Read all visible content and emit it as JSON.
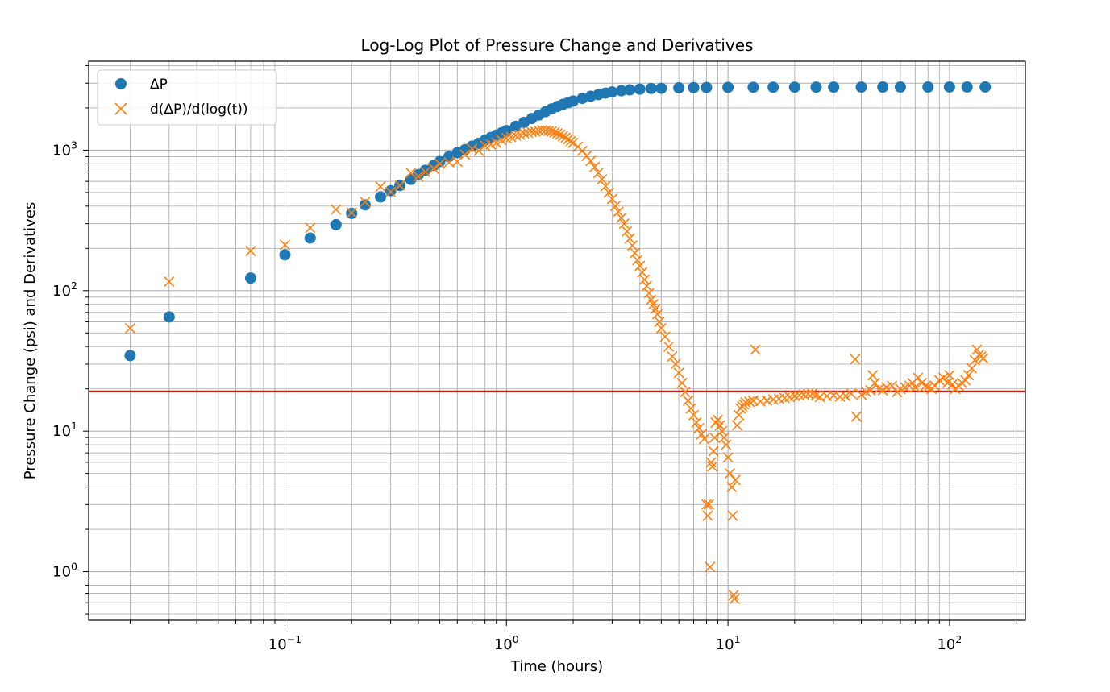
{
  "chart_data": {
    "type": "scatter",
    "title": "Log-Log Plot of Pressure Change and Derivatives",
    "xlabel": "Time (hours)",
    "ylabel": "Pressure Change (psi) and Derivatives",
    "xscale": "log",
    "yscale": "log",
    "xlim": [
      0.013,
      220
    ],
    "ylim": [
      0.45,
      4300
    ],
    "grid": true,
    "grid_minor": true,
    "legend_position": "top-left",
    "x_ticks": [
      {
        "base": "10",
        "exp": "−1",
        "value": 0.1
      },
      {
        "base": "10",
        "exp": "0",
        "value": 1
      },
      {
        "base": "10",
        "exp": "1",
        "value": 10
      },
      {
        "base": "10",
        "exp": "2",
        "value": 100
      }
    ],
    "y_ticks": [
      {
        "base": "10",
        "exp": "0",
        "value": 1
      },
      {
        "base": "10",
        "exp": "1",
        "value": 10
      },
      {
        "base": "10",
        "exp": "2",
        "value": 100
      },
      {
        "base": "10",
        "exp": "3",
        "value": 1000
      }
    ],
    "reference_line": {
      "y": 19.2,
      "color": "#ff0000"
    },
    "series": [
      {
        "name": "ΔP",
        "marker": "circle",
        "color": "#1f77b4",
        "x": [
          0.02,
          0.03,
          0.07,
          0.1,
          0.13,
          0.17,
          0.2,
          0.23,
          0.27,
          0.3,
          0.33,
          0.37,
          0.4,
          0.43,
          0.47,
          0.5,
          0.55,
          0.6,
          0.65,
          0.7,
          0.75,
          0.8,
          0.85,
          0.9,
          0.95,
          1.0,
          1.1,
          1.2,
          1.3,
          1.4,
          1.5,
          1.6,
          1.7,
          1.8,
          1.9,
          2.0,
          2.2,
          2.4,
          2.6,
          2.8,
          3.0,
          3.3,
          3.6,
          4.0,
          4.5,
          5.0,
          6.0,
          7.0,
          8.0,
          10.0,
          13.0,
          16.0,
          20.0,
          25.0,
          30.0,
          40.0,
          50.0,
          60.0,
          80.0,
          100.0,
          120.0,
          145.0
        ],
        "y": [
          34.5,
          65,
          123,
          180,
          237,
          295,
          355,
          408,
          465,
          515,
          560,
          620,
          670,
          720,
          780,
          830,
          900,
          960,
          1010,
          1070,
          1120,
          1180,
          1230,
          1280,
          1330,
          1380,
          1480,
          1580,
          1680,
          1780,
          1880,
          1970,
          2050,
          2120,
          2180,
          2240,
          2340,
          2420,
          2490,
          2550,
          2600,
          2650,
          2690,
          2720,
          2750,
          2760,
          2780,
          2790,
          2795,
          2800,
          2805,
          2808,
          2810,
          2812,
          2813,
          2815,
          2816,
          2817,
          2818,
          2819,
          2820,
          2821
        ]
      },
      {
        "name": "d(ΔP)/d(log(t))",
        "marker": "x",
        "color": "#ff7f0e",
        "x": [
          0.02,
          0.03,
          0.07,
          0.1,
          0.13,
          0.17,
          0.2,
          0.23,
          0.27,
          0.3,
          0.33,
          0.37,
          0.4,
          0.43,
          0.47,
          0.5,
          0.55,
          0.6,
          0.65,
          0.7,
          0.75,
          0.8,
          0.85,
          0.9,
          0.95,
          1.0,
          1.05,
          1.1,
          1.15,
          1.2,
          1.25,
          1.3,
          1.35,
          1.4,
          1.45,
          1.5,
          1.55,
          1.6,
          1.65,
          1.7,
          1.75,
          1.8,
          1.85,
          1.9,
          1.95,
          2.0,
          2.1,
          2.2,
          2.3,
          2.4,
          2.5,
          2.6,
          2.7,
          2.8,
          2.9,
          3.0,
          3.1,
          3.2,
          3.3,
          3.4,
          3.5,
          3.6,
          3.7,
          3.8,
          3.9,
          4.0,
          4.1,
          4.2,
          4.3,
          4.4,
          4.5,
          4.6,
          4.7,
          4.8,
          4.9,
          5.0,
          5.2,
          5.4,
          5.6,
          5.8,
          6.0,
          6.2,
          6.4,
          6.6,
          6.8,
          7.0,
          7.2,
          7.4,
          7.6,
          7.8,
          8.0,
          8.1,
          8.2,
          8.3,
          8.4,
          8.5,
          8.6,
          8.7,
          8.8,
          9.0,
          9.2,
          9.4,
          9.6,
          9.8,
          10.0,
          10.2,
          10.4,
          10.5,
          10.6,
          10.7,
          10.8,
          11.0,
          11.2,
          11.4,
          11.6,
          11.8,
          12.0,
          12.5,
          13.0,
          13.3,
          14.0,
          15.0,
          16.0,
          17.0,
          18.0,
          19.0,
          20.0,
          21.0,
          22.0,
          23.0,
          24.0,
          25.0,
          26.0,
          28.0,
          30.0,
          32.0,
          34.0,
          36.0,
          37.5,
          38.0,
          40.0,
          42.0,
          44.0,
          45.0,
          46.0,
          48.0,
          50.0,
          52.0,
          55.0,
          58.0,
          60.0,
          63.0,
          66.0,
          68.0,
          70.0,
          72.0,
          75.0,
          78.0,
          80.0,
          83.0,
          86.0,
          90.0,
          94.0,
          98.0,
          100.0,
          103.0,
          106.0,
          110.0,
          114.0,
          118.0,
          122.0,
          126.0,
          130.0,
          133.0,
          136.0,
          139.0,
          142.0
        ],
        "y": [
          54,
          116,
          192,
          212,
          280,
          378,
          358,
          428,
          550,
          505,
          560,
          690,
          650,
          700,
          740,
          800,
          820,
          830,
          930,
          1020,
          990,
          1080,
          1100,
          1130,
          1180,
          1220,
          1240,
          1270,
          1290,
          1320,
          1330,
          1350,
          1360,
          1380,
          1390,
          1380,
          1370,
          1360,
          1340,
          1320,
          1290,
          1260,
          1230,
          1200,
          1160,
          1130,
          1060,
          990,
          910,
          840,
          760,
          690,
          620,
          555,
          500,
          450,
          400,
          365,
          330,
          300,
          265,
          235,
          210,
          185,
          165,
          150,
          135,
          120,
          108,
          96,
          86,
          80,
          74,
          68,
          60,
          54,
          47,
          40,
          34,
          30,
          26,
          22,
          19,
          16.5,
          14.5,
          13,
          11.5,
          10.5,
          9.5,
          8.8,
          3.0,
          2.5,
          3.0,
          1.08,
          6.0,
          5.6,
          7.2,
          9.0,
          11.5,
          12.0,
          11.0,
          10.0,
          9.0,
          8.0,
          6.5,
          5.0,
          4.0,
          2.5,
          0.68,
          0.64,
          4.5,
          11.0,
          13.0,
          14.5,
          15.0,
          15.5,
          16.0,
          16.2,
          16.5,
          38.0,
          16.3,
          16.5,
          16.8,
          17.0,
          17.2,
          17.5,
          17.8,
          18.0,
          18.2,
          18.4,
          18.5,
          18.0,
          17.5,
          17.8,
          18.0,
          17.6,
          17.8,
          18.5,
          32.5,
          12.7,
          18.2,
          19.0,
          19.5,
          25.0,
          22.0,
          20.0,
          19.5,
          20.5,
          21.0,
          19.0,
          20.0,
          20.5,
          21.0,
          22.0,
          20.5,
          24.0,
          22.0,
          21.0,
          20.5,
          20.0,
          21.0,
          23.0,
          24.0,
          22.0,
          25.0,
          21.5,
          20.0,
          21.0,
          22.0,
          23.0,
          25.0,
          28.0,
          32.0,
          38.0,
          35.0,
          34.0,
          33.0
        ]
      }
    ]
  }
}
